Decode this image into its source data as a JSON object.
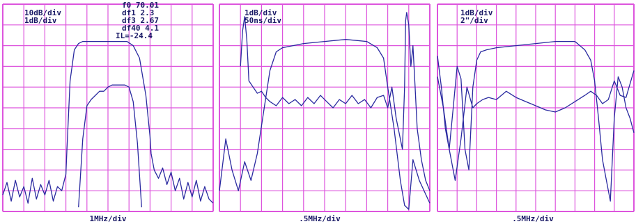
{
  "colors": {
    "grid": "#dd55dd",
    "trace": "#2a2aa0",
    "text": "#1a1a66",
    "background": "#ffffff"
  },
  "chart_data": [
    {
      "type": "line",
      "annotations": [
        "10dB/div",
        "1dB/div"
      ],
      "readouts": [
        "f0 70.01",
        "df1 2.3",
        "df3 2.67",
        "df40 4.1",
        "IL=-24.4"
      ],
      "xlabel": "1MHz/div",
      "grid": true,
      "grid_divisions": [
        10,
        10
      ],
      "ylim": [
        0,
        10
      ],
      "series": [
        {
          "x": [
            0,
            0.2,
            0.4,
            0.6,
            0.8,
            1.0,
            1.2,
            1.4,
            1.6,
            1.8,
            2.0,
            2.2,
            2.4,
            2.6,
            2.8,
            3.0,
            3.05,
            3.2,
            3.4,
            3.6,
            3.8,
            4.0,
            4.3,
            4.6,
            5.0,
            5.3,
            5.6,
            5.9,
            6.2,
            6.5,
            6.8,
            7.0,
            7.05,
            7.2,
            7.4,
            7.6,
            7.8,
            8.0,
            8.2,
            8.4,
            8.6,
            8.8,
            9.0,
            9.2,
            9.4,
            9.6,
            9.8,
            10.0
          ],
          "y": [
            0.8,
            1.4,
            0.5,
            1.5,
            0.7,
            1.2,
            0.4,
            1.6,
            0.6,
            1.3,
            0.8,
            1.5,
            0.5,
            1.2,
            1.0,
            1.8,
            3.0,
            6.3,
            7.8,
            8.1,
            8.2,
            8.2,
            8.2,
            8.2,
            8.2,
            8.2,
            8.2,
            8.2,
            8.0,
            7.4,
            5.6,
            3.6,
            2.8,
            2.0,
            1.6,
            2.1,
            1.3,
            1.9,
            1.0,
            1.6,
            0.6,
            1.4,
            0.7,
            1.5,
            0.5,
            1.2,
            0.6,
            0.4
          ]
        },
        {
          "x": [
            3.6,
            3.8,
            4.0,
            4.2,
            4.4,
            4.6,
            4.8,
            5.0,
            5.2,
            5.4,
            5.6,
            5.8,
            6.0,
            6.2,
            6.4,
            6.6
          ],
          "y": [
            0.2,
            3.5,
            5.1,
            5.4,
            5.6,
            5.8,
            5.8,
            6.0,
            6.1,
            6.1,
            6.1,
            6.1,
            6.0,
            5.3,
            3.3,
            0.2
          ]
        }
      ]
    },
    {
      "type": "line",
      "annotations": [
        "1dB/div",
        "50ns/div"
      ],
      "xlabel": ".5MHz/div",
      "grid": true,
      "grid_divisions": [
        10,
        10
      ],
      "ylim": [
        0,
        10
      ],
      "series": [
        {
          "x": [
            0,
            0.3,
            0.6,
            0.9,
            1.2,
            1.5,
            1.8,
            2.1,
            2.4,
            2.7,
            3.0,
            3.5,
            4.0,
            5.0,
            6.0,
            7.0,
            7.5,
            7.8,
            8.0,
            8.3,
            8.6,
            8.8,
            9.0,
            9.2,
            9.5,
            10.0
          ],
          "y": [
            1.0,
            3.5,
            2.0,
            1.0,
            2.4,
            1.5,
            2.8,
            4.8,
            6.8,
            7.7,
            7.9,
            8.0,
            8.1,
            8.2,
            8.3,
            8.2,
            7.9,
            7.4,
            6.0,
            4.0,
            1.5,
            0.3,
            0.1,
            2.5,
            1.5,
            0.4
          ]
        },
        {
          "x": [
            1.0,
            1.1,
            1.2,
            1.3,
            1.4,
            1.6,
            1.8,
            2.0,
            2.2,
            2.4,
            2.7,
            3.0,
            3.3,
            3.6,
            3.9,
            4.2,
            4.5,
            4.8,
            5.1,
            5.4,
            5.7,
            6.0,
            6.3,
            6.6,
            6.9,
            7.2,
            7.5,
            7.8,
            8.0,
            8.2,
            8.4,
            8.6,
            8.7,
            8.8,
            8.85,
            8.9,
            9.0,
            9.1,
            9.2,
            9.3,
            9.4,
            9.6,
            9.8,
            10.0
          ],
          "y": [
            7.0,
            8.7,
            9.4,
            8.3,
            6.3,
            6.0,
            5.7,
            5.8,
            5.5,
            5.3,
            5.1,
            5.5,
            5.2,
            5.4,
            5.1,
            5.5,
            5.2,
            5.6,
            5.3,
            5.0,
            5.4,
            5.2,
            5.6,
            5.2,
            5.4,
            5.0,
            5.5,
            5.6,
            5.0,
            6.0,
            4.5,
            3.5,
            3.0,
            6.0,
            9.2,
            9.6,
            9.0,
            7.0,
            8.0,
            6.0,
            4.0,
            2.5,
            1.5,
            1.0
          ]
        }
      ]
    },
    {
      "type": "line",
      "annotations": [
        "1dB/div",
        "2\"/div"
      ],
      "xlabel": ".5MHz/div",
      "grid": true,
      "grid_divisions": [
        10,
        10
      ],
      "ylim": [
        0,
        10
      ],
      "series": [
        {
          "x": [
            0,
            0.2,
            0.4,
            0.6,
            0.8,
            1.0,
            1.2,
            1.4,
            1.6,
            1.8,
            2.0,
            2.2,
            2.5,
            3.0,
            4.0,
            5.0,
            6.0,
            7.0,
            7.5,
            7.8,
            8.0,
            8.2,
            8.4,
            8.6,
            8.8,
            9.0,
            9.2,
            9.4,
            9.6,
            9.8,
            10.0
          ],
          "y": [
            7.5,
            6.0,
            4.0,
            3.0,
            5.0,
            7.0,
            6.4,
            3.0,
            2.0,
            6.0,
            7.3,
            7.7,
            7.8,
            7.9,
            8.0,
            8.1,
            8.2,
            8.2,
            7.8,
            7.3,
            6.3,
            4.5,
            2.5,
            1.5,
            0.5,
            4.5,
            6.5,
            6.0,
            5.0,
            4.5,
            3.8
          ]
        },
        {
          "x": [
            0,
            0.3,
            0.6,
            0.9,
            1.2,
            1.5,
            1.8,
            2.0,
            2.3,
            2.6,
            3.0,
            3.5,
            4.0,
            4.5,
            5.0,
            5.5,
            6.0,
            6.5,
            7.0,
            7.5,
            7.8,
            8.1,
            8.4,
            8.7,
            9.0,
            9.3,
            9.6,
            10.0
          ],
          "y": [
            6.5,
            5.0,
            3.0,
            1.5,
            3.5,
            6.0,
            5.0,
            5.2,
            5.4,
            5.5,
            5.4,
            5.8,
            5.5,
            5.3,
            5.1,
            4.9,
            4.8,
            5.0,
            5.3,
            5.6,
            5.8,
            5.6,
            5.2,
            5.4,
            6.3,
            5.6,
            5.5,
            6.8
          ]
        }
      ]
    }
  ]
}
